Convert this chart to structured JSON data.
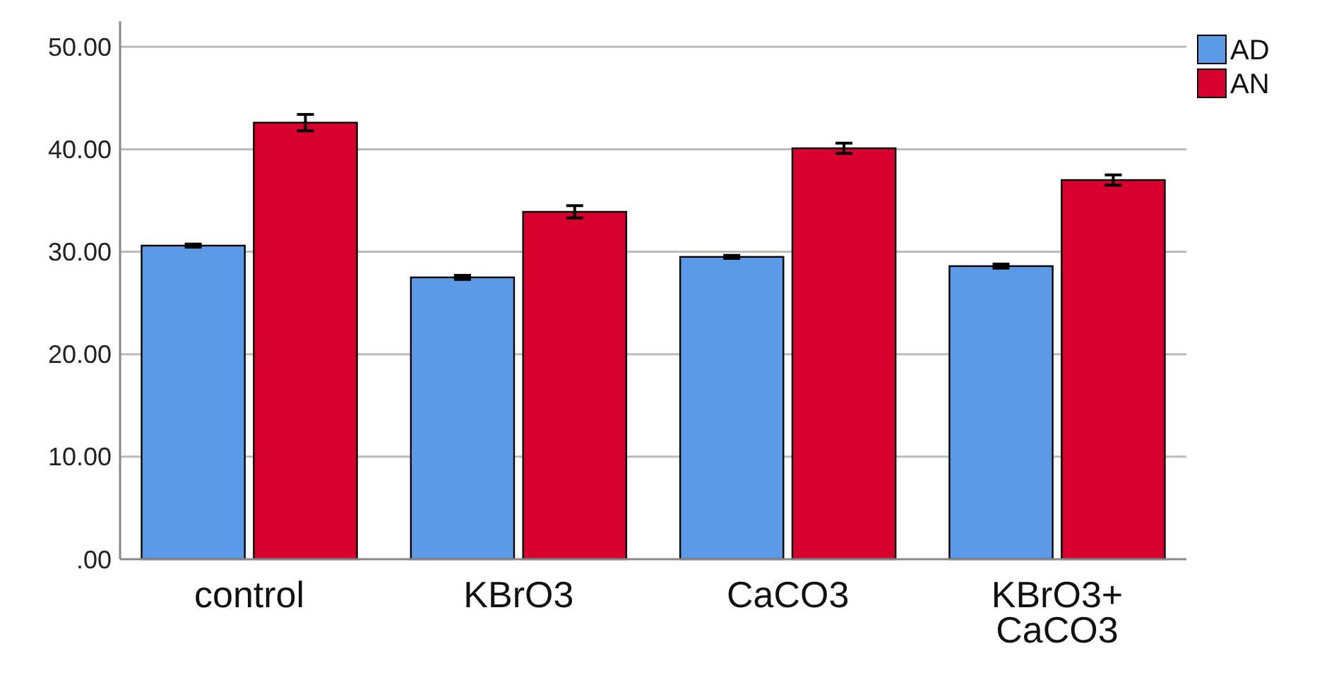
{
  "chart_data": {
    "type": "bar",
    "categories": [
      "control",
      "KBrO3",
      "CaCO3",
      "KBrO3+ CaCO3"
    ],
    "series": [
      {
        "name": "AD",
        "color": "#5a9ae6",
        "values": [
          30.6,
          27.5,
          29.5,
          28.6
        ],
        "errors": [
          0.15,
          0.2,
          0.15,
          0.2
        ]
      },
      {
        "name": "AN",
        "color": "#d7002f",
        "values": [
          42.6,
          33.9,
          40.1,
          37.0
        ],
        "errors": [
          0.8,
          0.6,
          0.5,
          0.5
        ]
      }
    ],
    "ylim": [
      0,
      52.5
    ],
    "yticks": [
      {
        "value": 0,
        "label": ".00"
      },
      {
        "value": 10,
        "label": "10.00"
      },
      {
        "value": 20,
        "label": "20.00"
      },
      {
        "value": 30,
        "label": "30.00"
      },
      {
        "value": 40,
        "label": "40.00"
      },
      {
        "value": 50,
        "label": "50.00"
      }
    ],
    "grid": "y",
    "legend": "top right"
  }
}
